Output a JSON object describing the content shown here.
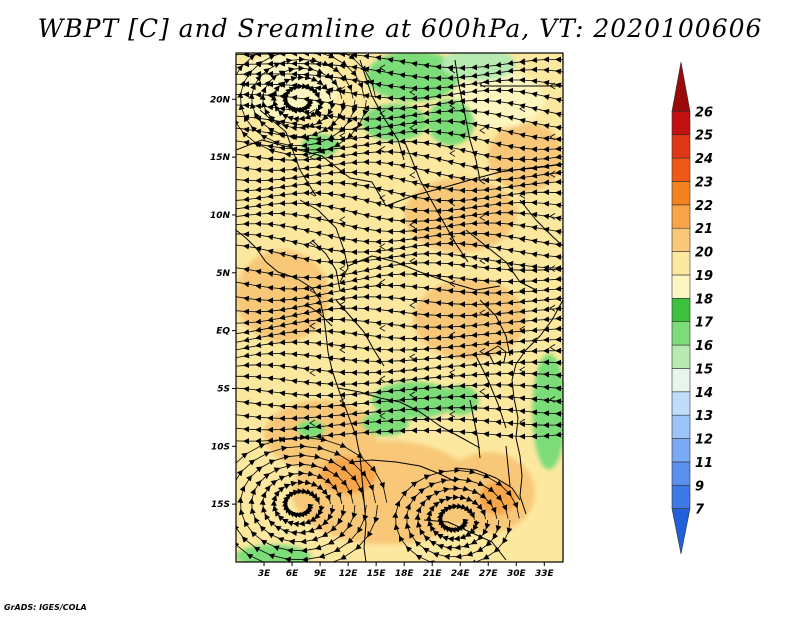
{
  "title": "WBPT [C] and Sreamline at 600hPa, VT: 2020100606",
  "footer": "GrADS: IGES/COLA",
  "map": {
    "lon_range": [
      0,
      35
    ],
    "lat_range": [
      -20,
      24
    ],
    "lat_ticks": [
      {
        "value": 20,
        "label": "20N"
      },
      {
        "value": 15,
        "label": "15N"
      },
      {
        "value": 10,
        "label": "10N"
      },
      {
        "value": 5,
        "label": "5N"
      },
      {
        "value": 0,
        "label": "EQ"
      },
      {
        "value": -5,
        "label": "5S"
      },
      {
        "value": -10,
        "label": "10S"
      },
      {
        "value": -15,
        "label": "15S"
      }
    ],
    "lon_ticks": [
      {
        "value": 3,
        "label": "3E"
      },
      {
        "value": 6,
        "label": "6E"
      },
      {
        "value": 9,
        "label": "9E"
      },
      {
        "value": 12,
        "label": "12E"
      },
      {
        "value": 15,
        "label": "15E"
      },
      {
        "value": 18,
        "label": "18E"
      },
      {
        "value": 21,
        "label": "21E"
      },
      {
        "value": 24,
        "label": "24E"
      },
      {
        "value": 27,
        "label": "27E"
      },
      {
        "value": 30,
        "label": "30E"
      },
      {
        "value": 33,
        "label": "33E"
      }
    ]
  },
  "colorbar": {
    "labels": [
      "7",
      "9",
      "11",
      "12",
      "13",
      "14",
      "15",
      "16",
      "17",
      "18",
      "19",
      "20",
      "21",
      "22",
      "23",
      "24",
      "25",
      "26"
    ],
    "colors": [
      "#2060d8",
      "#3c78e6",
      "#5a91ee",
      "#7aaaf4",
      "#9cc4f8",
      "#c0dcfb",
      "#e6f6ec",
      "#b6eab0",
      "#7cdc78",
      "#3cc23c",
      "#fdf6c0",
      "#fde8a0",
      "#f8c878",
      "#f7a548",
      "#f4821e",
      "#ee5a16",
      "#e13614",
      "#c21010",
      "#9a0a0a"
    ]
  },
  "fields": {
    "base_color": "#fde8a0",
    "regions": [
      {
        "name": "sahel-warm-core",
        "color": "#f8c878",
        "lon": 24,
        "lat": 10,
        "rx": 6,
        "ry": 3.2
      },
      {
        "name": "east-warm",
        "color": "#f8c878",
        "lon": 31,
        "lat": 15,
        "rx": 4,
        "ry": 3
      },
      {
        "name": "gulf-guinea-warm",
        "color": "#f8c878",
        "lon": 5,
        "lat": 3,
        "rx": 5,
        "ry": 4
      },
      {
        "name": "congo-warm",
        "color": "#f8c878",
        "lon": 25,
        "lat": 1,
        "rx": 6,
        "ry": 3.5
      },
      {
        "name": "angola-warm",
        "color": "#f8c878",
        "lon": 9,
        "lat": -9,
        "rx": 6,
        "ry": 3
      },
      {
        "name": "kalahari-warm",
        "color": "#f8c878",
        "lon": 16,
        "lat": -14,
        "rx": 10,
        "ry": 4.5
      },
      {
        "name": "zambia-warm",
        "color": "#f8c878",
        "lon": 27,
        "lat": -14,
        "rx": 5,
        "ry": 3.5
      },
      {
        "name": "namibia-hot",
        "color": "#f7a548",
        "lon": 12,
        "lat": -12.5,
        "rx": 3,
        "ry": 1.6
      },
      {
        "name": "lake-hot",
        "color": "#f7a548",
        "lon": 28,
        "lat": -14.5,
        "rx": 2,
        "ry": 1.4
      },
      {
        "name": "sahara-north-pale",
        "color": "#fdf6c0",
        "lon": 5,
        "lat": 21,
        "rx": 6,
        "ry": 2.8
      },
      {
        "name": "sahara-east-pale",
        "color": "#fdf6c0",
        "lon": 28,
        "lat": 20,
        "rx": 5,
        "ry": 2.5
      },
      {
        "name": "libya-moist",
        "color": "#7cdc78",
        "lon": 19,
        "lat": 22,
        "rx": 5,
        "ry": 2.2
      },
      {
        "name": "chad-moist",
        "color": "#7cdc78",
        "lon": 17,
        "lat": 18,
        "rx": 3.5,
        "ry": 1.6
      },
      {
        "name": "sudan-moist",
        "color": "#7cdc78",
        "lon": 23,
        "lat": 18,
        "rx": 2.5,
        "ry": 2
      },
      {
        "name": "egypt-moist",
        "color": "#b6eab0",
        "lon": 26,
        "lat": 23,
        "rx": 4,
        "ry": 1.4
      },
      {
        "name": "niger-moist",
        "color": "#7cdc78",
        "lon": 9,
        "lat": 16,
        "rx": 2,
        "ry": 1
      },
      {
        "name": "congo-basin-moist",
        "color": "#7cdc78",
        "lon": 19,
        "lat": -6,
        "rx": 4.5,
        "ry": 1.6
      },
      {
        "name": "drc-moist",
        "color": "#7cdc78",
        "lon": 16,
        "lat": -8,
        "rx": 2.5,
        "ry": 1.1
      },
      {
        "name": "kivu-moist",
        "color": "#7cdc78",
        "lon": 24,
        "lat": -6,
        "rx": 2,
        "ry": 1.3
      },
      {
        "name": "angola-moist",
        "color": "#7cdc78",
        "lon": 8,
        "lat": -8.5,
        "rx": 1.5,
        "ry": 0.8
      },
      {
        "name": "east-coast-moist",
        "color": "#7cdc78",
        "lon": 33.5,
        "lat": -7,
        "rx": 1.8,
        "ry": 5
      },
      {
        "name": "south-coast-moist",
        "color": "#7cdc78",
        "lon": 4,
        "lat": -19.5,
        "rx": 4,
        "ry": 1
      }
    ]
  }
}
